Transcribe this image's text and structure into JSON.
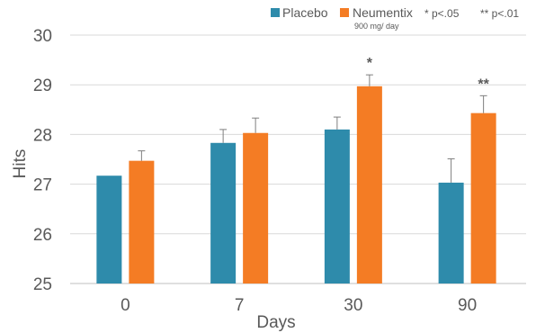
{
  "chart_data": {
    "type": "bar",
    "categories": [
      "0",
      "7",
      "30",
      "90"
    ],
    "series": [
      {
        "name": "Placebo",
        "color": "#2e8bab",
        "values": [
          27.17,
          27.83,
          28.1,
          27.03
        ],
        "error": [
          0,
          0.27,
          0.25,
          0.48
        ]
      },
      {
        "name": "Neumentix",
        "subtitle": "900 mg/ day",
        "color": "#f47c24",
        "values": [
          27.47,
          28.03,
          28.97,
          28.43
        ],
        "error": [
          0.2,
          0.3,
          0.23,
          0.35
        ]
      }
    ],
    "significance": [
      "",
      "",
      "*",
      "**"
    ],
    "significance_legend": [
      "* p<.05",
      "** p<.01"
    ],
    "xlabel": "Days",
    "ylabel": "Hits",
    "ylim": [
      25,
      30
    ],
    "yticks": [
      25,
      26,
      27,
      28,
      29,
      30
    ],
    "grid": true,
    "legend_position": "top-right"
  }
}
